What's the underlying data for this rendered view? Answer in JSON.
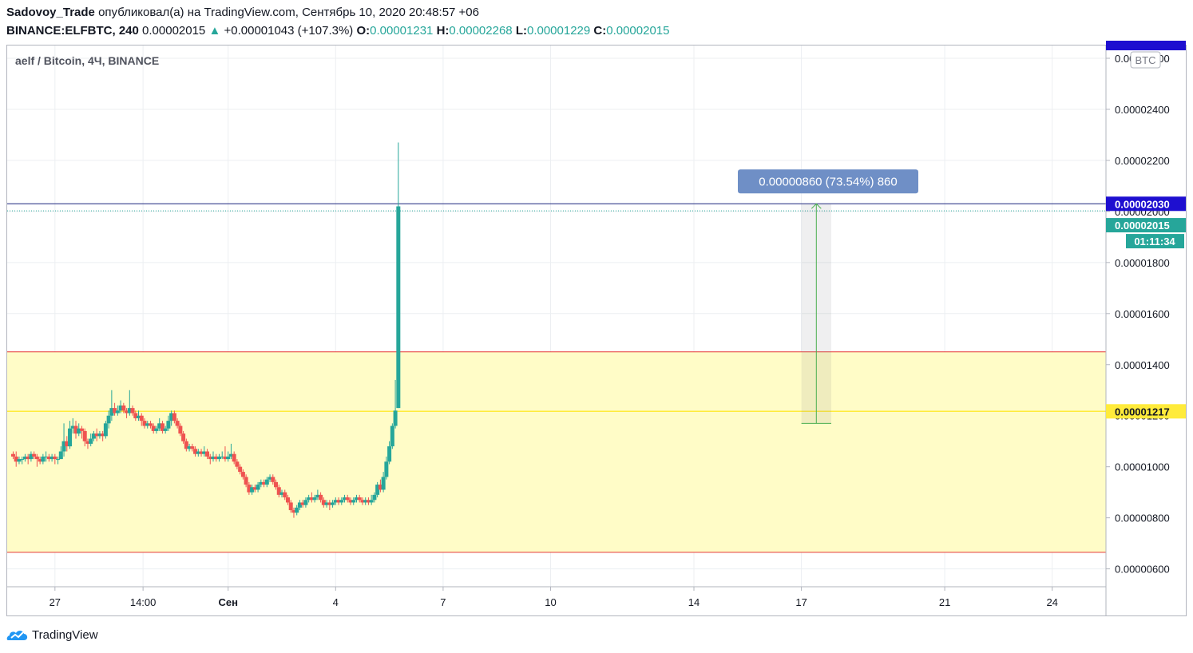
{
  "header": {
    "author": "Sadovoy_Trade",
    "published_text": "опубликовал(а) на TradingView.com, Сентябрь 10, 2020 20:48:57 +06",
    "symbol": "BINANCE:ELFBTC, 240",
    "last_price": "0.00002015",
    "change_arrow": "▲",
    "change": "+0.00001043 (+107.3%)",
    "o_label": "O:",
    "o_value": "0.00001231",
    "h_label": "H:",
    "h_value": "0.00002268",
    "l_label": "L:",
    "l_value": "0.00001229",
    "c_label": "C:",
    "c_value": "0.00002015"
  },
  "footer": {
    "brand": "TradingView"
  },
  "colors": {
    "up": "#26a69a",
    "down": "#ef5350",
    "zone": "#fff9c4",
    "zone_border": "#e53935",
    "level": "#ffeb3b",
    "blue": "#1e0fd0",
    "measure": "#6f8fc6"
  },
  "chart_data": {
    "type": "candlestick",
    "title": "aelf / Bitcoin, 4Ч, BINANCE",
    "currency_badge": "BTC",
    "y_ticks": [
      "0.00000600",
      "0.00000800",
      "0.00001000",
      "0.00001200",
      "0.00001400",
      "0.00001600",
      "0.00001800",
      "0.00002000",
      "0.00002200",
      "0.00002400",
      "0.00002600"
    ],
    "ylim": [
      5.3e-06,
      2.65e-05
    ],
    "x_ticks": [
      {
        "label": "27",
        "t": 14
      },
      {
        "label": "14:00",
        "t": 43.5
      },
      {
        "label": "Сен",
        "t": 72
      },
      {
        "label": "4",
        "t": 108
      },
      {
        "label": "7",
        "t": 144
      },
      {
        "label": "10",
        "t": 180
      },
      {
        "label": "14",
        "t": 228
      },
      {
        "label": "17",
        "t": 264
      },
      {
        "label": "21",
        "t": 312
      },
      {
        "label": "24",
        "t": 348
      }
    ],
    "xlim": [
      -2,
      366
    ],
    "candles": [
      [
        1.05e-05,
        1.04e-05,
        1.06e-05,
        1.03e-05
      ],
      [
        1.04e-05,
        1.02e-05,
        1.06e-05,
        1e-05
      ],
      [
        1.02e-05,
        1.03e-05,
        1.04e-05,
        1.01e-05
      ],
      [
        1.03e-05,
        1.03e-05,
        1.04e-05,
        1.01e-05
      ],
      [
        1.03e-05,
        1.04e-05,
        1.05e-05,
        1.02e-05
      ],
      [
        1.04e-05,
        1.03e-05,
        1.05e-05,
        1.01e-05
      ],
      [
        1.03e-05,
        1.05e-05,
        1.06e-05,
        1.02e-05
      ],
      [
        1.05e-05,
        1.04e-05,
        1.06e-05,
        1.03e-05
      ],
      [
        1.04e-05,
        1.03e-05,
        1.05e-05,
        1e-05
      ],
      [
        1.03e-05,
        1.02e-05,
        1.04e-05,
        1.01e-05
      ],
      [
        1.02e-05,
        1.04e-05,
        1.05e-05,
        1.01e-05
      ],
      [
        1.04e-05,
        1.04e-05,
        1.06e-05,
        1.02e-05
      ],
      [
        1.04e-05,
        1.03e-05,
        1.05e-05,
        1.02e-05
      ],
      [
        1.03e-05,
        1.04e-05,
        1.05e-05,
        1.02e-05
      ],
      [
        1.04e-05,
        1.03e-05,
        1.05e-05,
        1.01e-05
      ],
      [
        1.03e-05,
        1.03e-05,
        1.04e-05,
        1.01e-05
      ],
      [
        1.03e-05,
        1.06e-05,
        1.08e-05,
        1.03e-05
      ],
      [
        1.06e-05,
        1.1e-05,
        1.17e-05,
        1.04e-05
      ],
      [
        1.1e-05,
        1.08e-05,
        1.12e-05,
        1.06e-05
      ],
      [
        1.08e-05,
        1.15e-05,
        1.18e-05,
        1.07e-05
      ],
      [
        1.15e-05,
        1.16e-05,
        1.19e-05,
        1.13e-05
      ],
      [
        1.16e-05,
        1.13e-05,
        1.18e-05,
        1.11e-05
      ],
      [
        1.13e-05,
        1.15e-05,
        1.17e-05,
        1.12e-05
      ],
      [
        1.15e-05,
        1.14e-05,
        1.16e-05,
        1.11e-05
      ],
      [
        1.14e-05,
        1.1e-05,
        1.15e-05,
        1.08e-05
      ],
      [
        1.1e-05,
        1.09e-05,
        1.11e-05,
        1.07e-05
      ],
      [
        1.09e-05,
        1.11e-05,
        1.13e-05,
        1.08e-05
      ],
      [
        1.11e-05,
        1.13e-05,
        1.14e-05,
        1.1e-05
      ],
      [
        1.13e-05,
        1.12e-05,
        1.15e-05,
        1.1e-05
      ],
      [
        1.12e-05,
        1.13e-05,
        1.14e-05,
        1.11e-05
      ],
      [
        1.13e-05,
        1.12e-05,
        1.14e-05,
        1.1e-05
      ],
      [
        1.12e-05,
        1.17e-05,
        1.18e-05,
        1.11e-05
      ],
      [
        1.17e-05,
        1.2e-05,
        1.22e-05,
        1.15e-05
      ],
      [
        1.2e-05,
        1.23e-05,
        1.3e-05,
        1.18e-05
      ],
      [
        1.23e-05,
        1.21e-05,
        1.25e-05,
        1.2e-05
      ],
      [
        1.21e-05,
        1.22e-05,
        1.24e-05,
        1.2e-05
      ],
      [
        1.22e-05,
        1.24e-05,
        1.26e-05,
        1.21e-05
      ],
      [
        1.24e-05,
        1.22e-05,
        1.25e-05,
        1.21e-05
      ],
      [
        1.22e-05,
        1.21e-05,
        1.23e-05,
        1.19e-05
      ],
      [
        1.21e-05,
        1.23e-05,
        1.3e-05,
        1.2e-05
      ],
      [
        1.23e-05,
        1.21e-05,
        1.24e-05,
        1.2e-05
      ],
      [
        1.21e-05,
        1.19e-05,
        1.22e-05,
        1.18e-05
      ],
      [
        1.19e-05,
        1.2e-05,
        1.22e-05,
        1.18e-05
      ],
      [
        1.2e-05,
        1.18e-05,
        1.21e-05,
        1.16e-05
      ],
      [
        1.18e-05,
        1.16e-05,
        1.19e-05,
        1.15e-05
      ],
      [
        1.16e-05,
        1.17e-05,
        1.18e-05,
        1.15e-05
      ],
      [
        1.17e-05,
        1.16e-05,
        1.18e-05,
        1.15e-05
      ],
      [
        1.16e-05,
        1.14e-05,
        1.17e-05,
        1.13e-05
      ],
      [
        1.14e-05,
        1.15e-05,
        1.16e-05,
        1.13e-05
      ],
      [
        1.15e-05,
        1.17e-05,
        1.19e-05,
        1.14e-05
      ],
      [
        1.17e-05,
        1.14e-05,
        1.18e-05,
        1.13e-05
      ],
      [
        1.14e-05,
        1.15e-05,
        1.16e-05,
        1.13e-05
      ],
      [
        1.15e-05,
        1.18e-05,
        1.2e-05,
        1.14e-05
      ],
      [
        1.18e-05,
        1.21e-05,
        1.22e-05,
        1.16e-05
      ],
      [
        1.21e-05,
        1.18e-05,
        1.22e-05,
        1.17e-05
      ],
      [
        1.18e-05,
        1.16e-05,
        1.19e-05,
        1.15e-05
      ],
      [
        1.16e-05,
        1.13e-05,
        1.17e-05,
        1.12e-05
      ],
      [
        1.13e-05,
        1.1e-05,
        1.14e-05,
        1.09e-05
      ],
      [
        1.1e-05,
        1.07e-05,
        1.11e-05,
        1.06e-05
      ],
      [
        1.07e-05,
        1.08e-05,
        1.09e-05,
        1.06e-05
      ],
      [
        1.08e-05,
        1.07e-05,
        1.09e-05,
        1.06e-05
      ],
      [
        1.07e-05,
        1.05e-05,
        1.08e-05,
        1.04e-05
      ],
      [
        1.05e-05,
        1.06e-05,
        1.07e-05,
        1.04e-05
      ],
      [
        1.06e-05,
        1.05e-05,
        1.07e-05,
        1.04e-05
      ],
      [
        1.05e-05,
        1.06e-05,
        1.08e-05,
        1.04e-05
      ],
      [
        1.06e-05,
        1.04e-05,
        1.07e-05,
        1.03e-05
      ],
      [
        1.04e-05,
        1.03e-05,
        1.05e-05,
        1.01e-05
      ],
      [
        1.03e-05,
        1.04e-05,
        1.06e-05,
        1.02e-05
      ],
      [
        1.04e-05,
        1.03e-05,
        1.05e-05,
        1.02e-05
      ],
      [
        1.03e-05,
        1.04e-05,
        1.05e-05,
        1.02e-05
      ],
      [
        1.04e-05,
        1.04e-05,
        1.06e-05,
        1.03e-05
      ],
      [
        1.04e-05,
        1.03e-05,
        1.08e-05,
        1.02e-05
      ],
      [
        1.03e-05,
        1.04e-05,
        1.06e-05,
        1.02e-05
      ],
      [
        1.04e-05,
        1.05e-05,
        1.09e-05,
        1.03e-05
      ],
      [
        1.05e-05,
        1.02e-05,
        1.06e-05,
        1.01e-05
      ],
      [
        1.02e-05,
        1e-05,
        1.03e-05,
        9.9e-06
      ],
      [
        1e-05,
        9.8e-06,
        1.01e-05,
        9.7e-06
      ],
      [
        9.8e-06,
        9.6e-06,
        9.9e-06,
        9.5e-06
      ],
      [
        9.6e-06,
        9.3e-06,
        9.7e-06,
        9.2e-06
      ],
      [
        9.3e-06,
        9e-06,
        9.4e-06,
        8.9e-06
      ],
      [
        9e-06,
        9.2e-06,
        9.3e-06,
        8.9e-06
      ],
      [
        9.2e-06,
        9.1e-06,
        9.3e-06,
        9e-06
      ],
      [
        9.1e-06,
        9.3e-06,
        9.4e-06,
        9e-06
      ],
      [
        9.3e-06,
        9.4e-06,
        9.5e-06,
        9.2e-06
      ],
      [
        9.4e-06,
        9.3e-06,
        9.5e-06,
        9.2e-06
      ],
      [
        9.3e-06,
        9.5e-06,
        9.6e-06,
        9.2e-06
      ],
      [
        9.5e-06,
        9.6e-06,
        9.7e-06,
        9.4e-06
      ],
      [
        9.6e-06,
        9.4e-06,
        9.7e-06,
        9.3e-06
      ],
      [
        9.4e-06,
        9.2e-06,
        9.5e-06,
        9.1e-06
      ],
      [
        9.2e-06,
        8.9e-06,
        9.3e-06,
        8.8e-06
      ],
      [
        8.9e-06,
        9e-06,
        9.1e-06,
        8.8e-06
      ],
      [
        9e-06,
        8.8e-06,
        9.1e-06,
        8.7e-06
      ],
      [
        8.8e-06,
        8.6e-06,
        8.9e-06,
        8.5e-06
      ],
      [
        8.6e-06,
        8.3e-06,
        8.7e-06,
        8.2e-06
      ],
      [
        8.3e-06,
        8.2e-06,
        8.4e-06,
        8e-06
      ],
      [
        8.2e-06,
        8.4e-06,
        8.5e-06,
        8.1e-06
      ],
      [
        8.4e-06,
        8.6e-06,
        8.7e-06,
        8.3e-06
      ],
      [
        8.6e-06,
        8.5e-06,
        8.7e-06,
        8.4e-06
      ],
      [
        8.5e-06,
        8.7e-06,
        8.8e-06,
        8.4e-06
      ],
      [
        8.7e-06,
        8.8e-06,
        8.9e-06,
        8.6e-06
      ],
      [
        8.8e-06,
        8.7e-06,
        9e-06,
        8.6e-06
      ],
      [
        8.7e-06,
        8.8e-06,
        8.9e-06,
        8.6e-06
      ],
      [
        8.8e-06,
        8.9e-06,
        9.1e-06,
        8.7e-06
      ],
      [
        8.9e-06,
        8.7e-06,
        9e-06,
        8.6e-06
      ],
      [
        8.7e-06,
        8.5e-06,
        8.8e-06,
        8.4e-06
      ],
      [
        8.5e-06,
        8.6e-06,
        8.7e-06,
        8.4e-06
      ],
      [
        8.6e-06,
        8.5e-06,
        8.7e-06,
        8.3e-06
      ],
      [
        8.5e-06,
        8.6e-06,
        8.7e-06,
        8.4e-06
      ],
      [
        8.6e-06,
        8.7e-06,
        8.8e-06,
        8.5e-06
      ],
      [
        8.7e-06,
        8.6e-06,
        8.8e-06,
        8.5e-06
      ],
      [
        8.6e-06,
        8.7e-06,
        8.8e-06,
        8.5e-06
      ],
      [
        8.7e-06,
        8.8e-06,
        8.9e-06,
        8.6e-06
      ],
      [
        8.8e-06,
        8.7e-06,
        8.9e-06,
        8.6e-06
      ],
      [
        8.7e-06,
        8.6e-06,
        8.8e-06,
        8.5e-06
      ],
      [
        8.6e-06,
        8.7e-06,
        8.8e-06,
        8.5e-06
      ],
      [
        8.7e-06,
        8.8e-06,
        8.9e-06,
        8.6e-06
      ],
      [
        8.8e-06,
        8.7e-06,
        8.9e-06,
        8.6e-06
      ],
      [
        8.7e-06,
        8.6e-06,
        8.8e-06,
        8.5e-06
      ],
      [
        8.6e-06,
        8.7e-06,
        8.8e-06,
        8.5e-06
      ],
      [
        8.7e-06,
        8.6e-06,
        8.8e-06,
        8.5e-06
      ],
      [
        8.6e-06,
        8.7e-06,
        8.9e-06,
        8.5e-06
      ],
      [
        8.7e-06,
        8.9e-06,
        9e-06,
        8.6e-06
      ],
      [
        8.9e-06,
        9.3e-06,
        9.4e-06,
        8.8e-06
      ],
      [
        9.3e-06,
        9.1e-06,
        9.5e-06,
        9e-06
      ],
      [
        9.1e-06,
        9.6e-06,
        9.8e-06,
        9e-06
      ],
      [
        9.6e-06,
        1.02e-05,
        1.04e-05,
        9.5e-06
      ],
      [
        1.02e-05,
        1.08e-05,
        1.1e-05,
        1.01e-05
      ],
      [
        1.08e-05,
        1.16e-05,
        1.17e-05,
        1.07e-05
      ],
      [
        1.16e-05,
        1.22e-05,
        1.34e-05,
        1.15e-05
      ],
      [
        1.23e-05,
        2.02e-05,
        2.27e-05,
        1.23e-05
      ]
    ],
    "series": [
      {
        "name": "ELFBTC",
        "type": "candles"
      }
    ],
    "zone": {
      "top": 1.45e-05,
      "bottom": 6.65e-06
    },
    "support_level": {
      "value": 1.217e-05,
      "label": "0.00001217"
    },
    "high_line": {
      "value": 2.03e-05,
      "label": "0.00002030"
    },
    "last_price_label": "0.00002015",
    "countdown": "01:11:34",
    "top_cut_label": "0.00002600",
    "measure": {
      "t1": 264,
      "t2": 274,
      "from": 1.17e-05,
      "to": 2.03e-05,
      "label": "0.00000860 (73.54%) 860"
    }
  }
}
